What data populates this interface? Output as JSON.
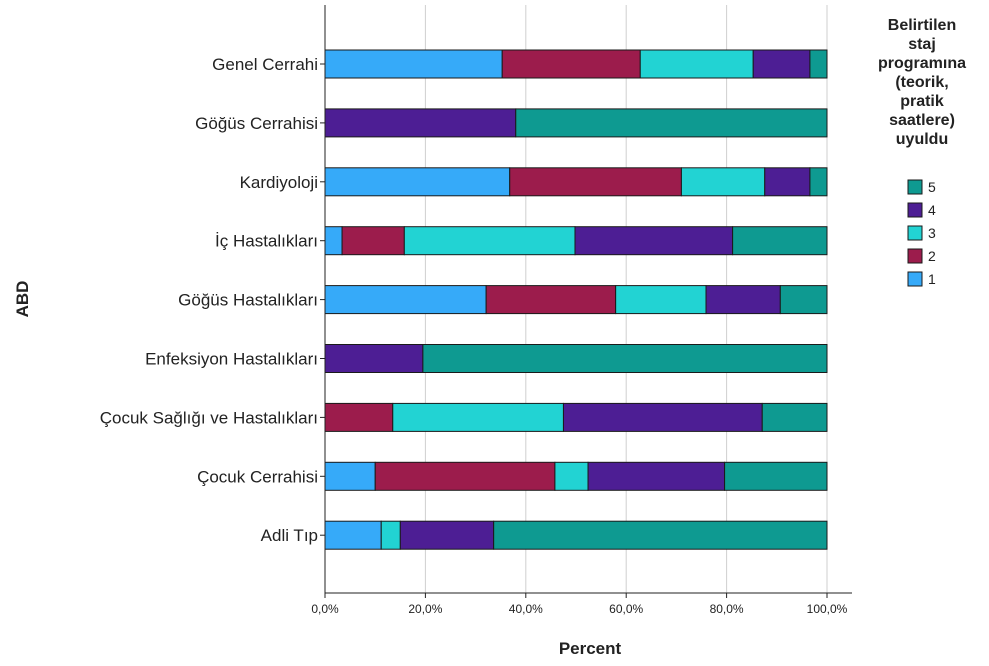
{
  "chart_data": {
    "type": "bar",
    "orientation": "horizontal",
    "stacked": true,
    "ylabel": "ABD",
    "xlabel": "Percent",
    "xlim": [
      0,
      100
    ],
    "x_ticks": [
      "0,0%",
      "20,0%",
      "40,0%",
      "60,0%",
      "80,0%",
      "100,0%"
    ],
    "grid": true,
    "legend_position": "right",
    "legend_title": [
      "Belirtilen",
      "staj",
      "programına",
      "(teorik,",
      "pratik",
      "saatlere)",
      "uyuldu"
    ],
    "categories": [
      "Genel Cerrahi",
      "Göğüs Cerrahisi",
      "Kardiyoloji",
      "İç Hastalıkları",
      "Göğüs Hastalıkları",
      "Enfeksiyon Hastalıkları",
      "Çocuk Sağlığı ve Hastalıkları",
      "Çocuk Cerrahisi",
      "Adli Tıp"
    ],
    "series": [
      {
        "name": "1",
        "color": "#36aaf9",
        "values": [
          35.3,
          0,
          36.8,
          3.4,
          32.1,
          0,
          0,
          10.0,
          11.2
        ]
      },
      {
        "name": "2",
        "color": "#9c1c4c",
        "values": [
          27.5,
          0,
          34.2,
          12.4,
          25.8,
          0,
          13.5,
          35.8,
          0
        ]
      },
      {
        "name": "3",
        "color": "#22d3d3",
        "values": [
          22.5,
          0,
          16.6,
          34.0,
          18.0,
          0,
          34.0,
          6.6,
          3.8
        ]
      },
      {
        "name": "4",
        "color": "#4d1e94",
        "values": [
          11.3,
          38.0,
          9.0,
          31.4,
          14.8,
          19.5,
          39.6,
          27.2,
          18.6
        ]
      },
      {
        "name": "5",
        "color": "#0e9a91",
        "values": [
          3.4,
          62.0,
          3.4,
          18.8,
          9.3,
          80.5,
          12.9,
          20.4,
          66.4
        ]
      }
    ]
  }
}
